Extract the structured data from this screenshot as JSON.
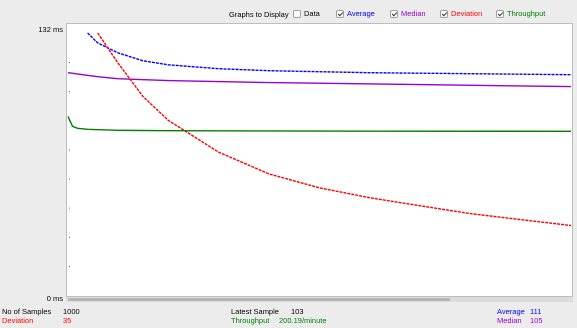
{
  "header": {
    "title": "Graphs to Display",
    "options": [
      {
        "label": "Data",
        "checked": false,
        "color": "#000000"
      },
      {
        "label": "Average",
        "checked": true,
        "color": "#0000ff"
      },
      {
        "label": "Median",
        "checked": true,
        "color": "#9900cc"
      },
      {
        "label": "Deviation",
        "checked": true,
        "color": "#ff0000"
      },
      {
        "label": "Throughput",
        "checked": true,
        "color": "#008000"
      }
    ]
  },
  "axis": {
    "y_max_label": "132 ms",
    "y_min_label": "0 ms"
  },
  "stats": {
    "samples_label": "No of Samples",
    "samples_value": "1000",
    "deviation_label": "Deviation",
    "deviation_value": "35",
    "latest_label": "Latest Sample",
    "latest_value": "103",
    "throughput_label": "Throughput",
    "throughput_value": "200.19/minute",
    "average_label": "Average",
    "average_value": "111",
    "median_label": "Median",
    "median_value": "105"
  },
  "chart_data": {
    "type": "line",
    "ylim": [
      0,
      132
    ],
    "x_range": [
      1,
      1000
    ],
    "series": [
      {
        "name": "Average",
        "color": "#0000ff",
        "points": [
          [
            40,
            132
          ],
          [
            60,
            127
          ],
          [
            100,
            122
          ],
          [
            150,
            118
          ],
          [
            200,
            116
          ],
          [
            300,
            114
          ],
          [
            400,
            113
          ],
          [
            600,
            112
          ],
          [
            800,
            111.5
          ],
          [
            1000,
            111
          ]
        ]
      },
      {
        "name": "Median",
        "color": "#9900cc",
        "points": [
          [
            1,
            112
          ],
          [
            30,
            111
          ],
          [
            60,
            110
          ],
          [
            100,
            109
          ],
          [
            200,
            108
          ],
          [
            400,
            107
          ],
          [
            700,
            106
          ],
          [
            1000,
            105
          ]
        ]
      },
      {
        "name": "Deviation",
        "color": "#ff0000",
        "points": [
          [
            60,
            132
          ],
          [
            100,
            117
          ],
          [
            150,
            100
          ],
          [
            200,
            88
          ],
          [
            300,
            72
          ],
          [
            400,
            61
          ],
          [
            500,
            54
          ],
          [
            600,
            49
          ],
          [
            700,
            45
          ],
          [
            800,
            41
          ],
          [
            900,
            38
          ],
          [
            1000,
            35
          ]
        ]
      },
      {
        "name": "Throughput",
        "color": "#008000",
        "points": [
          [
            1,
            90
          ],
          [
            10,
            85
          ],
          [
            20,
            84
          ],
          [
            40,
            83.5
          ],
          [
            100,
            83
          ],
          [
            200,
            82.8
          ],
          [
            500,
            82.6
          ],
          [
            1000,
            82.5
          ]
        ]
      }
    ]
  }
}
